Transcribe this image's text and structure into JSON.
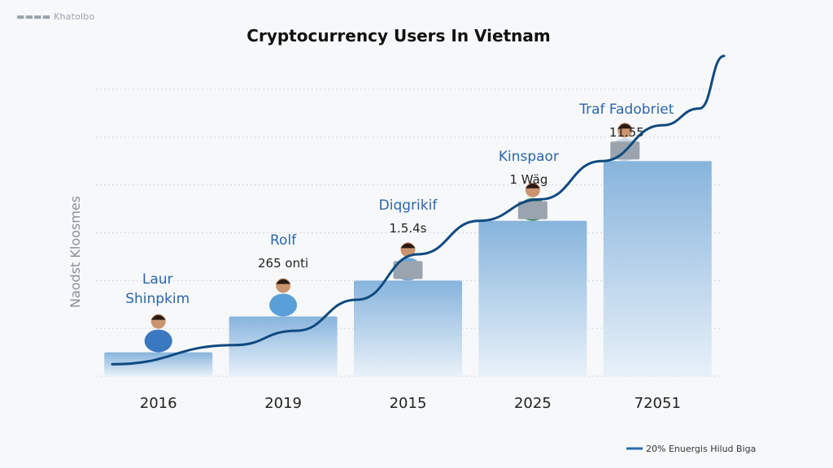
{
  "header": {
    "logo_text": "▬▬▬▬ Khatolbo"
  },
  "chart_data": {
    "type": "bar",
    "title": "Cryptocurrency Users In Vietnam",
    "ylabel": "Naodst Kloosmes",
    "xlabel": "",
    "categories": [
      "2016",
      "2019",
      "2015",
      "2025",
      "72051"
    ],
    "bar_names": [
      "Laur Shinpkim",
      "Rolf",
      "Diqgrikif",
      "Kinspaor",
      "Traf Fadobriet"
    ],
    "bar_labels": [
      "",
      "265 onti",
      "1.5.4s",
      "1 Wäg",
      "11.55"
    ],
    "values": [
      1,
      2.5,
      4,
      6.5,
      9
    ],
    "ylim": [
      0,
      12
    ],
    "line_series": {
      "name": "20% Enuergis Hilud Biga",
      "values": [
        0.5,
        1.3,
        1.9,
        3.2,
        5.1,
        6.5,
        7.4,
        9.0,
        10.5,
        11.2,
        13.4
      ],
      "x_positions": [
        0,
        1,
        1.5,
        2,
        2.5,
        3,
        3.5,
        4,
        4.5,
        4.8,
        5.0
      ]
    },
    "grid": true,
    "legend_position": "bottom-right",
    "colors": {
      "bar_top": "#87b4dc",
      "bar_bottom": "#e6f0f8",
      "line": "#0f4a80",
      "name": "#2a66a8"
    }
  }
}
